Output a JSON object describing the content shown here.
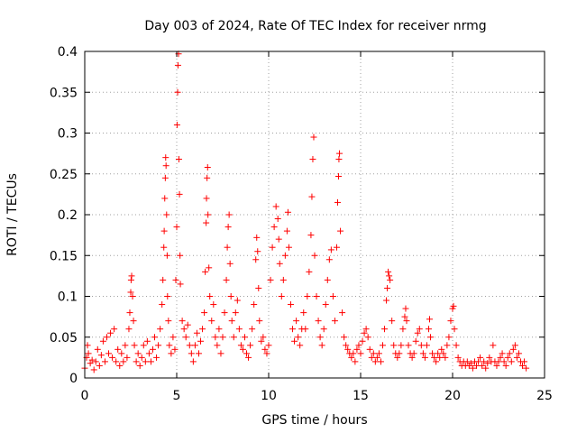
{
  "chart_data": {
    "type": "scatter",
    "title": "Day 003 of 2024, Rate Of TEC Index for receiver nrmg",
    "xlabel": "GPS time / hours",
    "ylabel": "ROTI / TECUs",
    "xlim": [
      0,
      25
    ],
    "ylim": [
      0,
      0.4
    ],
    "xticks": [
      0,
      5,
      10,
      15,
      20,
      25
    ],
    "xtick_labels": [
      "0",
      "5",
      "10",
      "15",
      "20",
      "25"
    ],
    "yticks": [
      0,
      0.05,
      0.1,
      0.15,
      0.2,
      0.25,
      0.3,
      0.35,
      0.4
    ],
    "ytick_labels": [
      "0",
      "0.05",
      "0.1",
      "0.15",
      "0.2",
      "0.25",
      "0.3",
      "0.35",
      "0.4"
    ],
    "grid": true,
    "marker": "+",
    "color": "#ff0000",
    "series": [
      {
        "name": "ROTI",
        "points": [
          [
            0.0,
            0.012
          ],
          [
            0.1,
            0.025
          ],
          [
            0.15,
            0.04
          ],
          [
            0.2,
            0.03
          ],
          [
            0.3,
            0.018
          ],
          [
            0.4,
            0.022
          ],
          [
            0.5,
            0.01
          ],
          [
            0.6,
            0.02
          ],
          [
            0.7,
            0.035
          ],
          [
            0.8,
            0.015
          ],
          [
            0.9,
            0.028
          ],
          [
            1.0,
            0.045
          ],
          [
            1.1,
            0.02
          ],
          [
            1.2,
            0.05
          ],
          [
            1.3,
            0.03
          ],
          [
            1.4,
            0.055
          ],
          [
            1.5,
            0.025
          ],
          [
            1.6,
            0.06
          ],
          [
            1.7,
            0.02
          ],
          [
            1.8,
            0.035
          ],
          [
            1.9,
            0.015
          ],
          [
            2.0,
            0.03
          ],
          [
            2.1,
            0.02
          ],
          [
            2.2,
            0.04
          ],
          [
            2.3,
            0.025
          ],
          [
            2.4,
            0.06
          ],
          [
            2.45,
            0.08
          ],
          [
            2.5,
            0.105
          ],
          [
            2.52,
            0.12
          ],
          [
            2.55,
            0.125
          ],
          [
            2.6,
            0.1
          ],
          [
            2.65,
            0.07
          ],
          [
            2.7,
            0.04
          ],
          [
            2.8,
            0.02
          ],
          [
            2.9,
            0.03
          ],
          [
            3.0,
            0.015
          ],
          [
            3.1,
            0.025
          ],
          [
            3.2,
            0.04
          ],
          [
            3.3,
            0.02
          ],
          [
            3.4,
            0.045
          ],
          [
            3.5,
            0.03
          ],
          [
            3.6,
            0.02
          ],
          [
            3.7,
            0.035
          ],
          [
            3.8,
            0.05
          ],
          [
            3.9,
            0.025
          ],
          [
            4.0,
            0.04
          ],
          [
            4.1,
            0.06
          ],
          [
            4.2,
            0.09
          ],
          [
            4.25,
            0.12
          ],
          [
            4.3,
            0.16
          ],
          [
            4.32,
            0.18
          ],
          [
            4.35,
            0.22
          ],
          [
            4.38,
            0.245
          ],
          [
            4.4,
            0.27
          ],
          [
            4.42,
            0.26
          ],
          [
            4.45,
            0.2
          ],
          [
            4.48,
            0.15
          ],
          [
            4.5,
            0.1
          ],
          [
            4.55,
            0.07
          ],
          [
            4.6,
            0.04
          ],
          [
            4.7,
            0.03
          ],
          [
            4.8,
            0.05
          ],
          [
            4.9,
            0.035
          ],
          [
            4.95,
            0.12
          ],
          [
            5.0,
            0.185
          ],
          [
            5.02,
            0.31
          ],
          [
            5.05,
            0.35
          ],
          [
            5.07,
            0.383
          ],
          [
            5.1,
            0.397
          ],
          [
            5.12,
            0.268
          ],
          [
            5.15,
            0.225
          ],
          [
            5.18,
            0.15
          ],
          [
            5.2,
            0.115
          ],
          [
            5.3,
            0.07
          ],
          [
            5.4,
            0.06
          ],
          [
            5.5,
            0.05
          ],
          [
            5.6,
            0.065
          ],
          [
            5.7,
            0.04
          ],
          [
            5.8,
            0.03
          ],
          [
            5.9,
            0.02
          ],
          [
            6.0,
            0.04
          ],
          [
            6.1,
            0.055
          ],
          [
            6.2,
            0.03
          ],
          [
            6.3,
            0.045
          ],
          [
            6.4,
            0.06
          ],
          [
            6.5,
            0.08
          ],
          [
            6.55,
            0.13
          ],
          [
            6.6,
            0.19
          ],
          [
            6.62,
            0.22
          ],
          [
            6.65,
            0.245
          ],
          [
            6.68,
            0.258
          ],
          [
            6.7,
            0.2
          ],
          [
            6.75,
            0.135
          ],
          [
            6.8,
            0.1
          ],
          [
            6.9,
            0.07
          ],
          [
            7.0,
            0.09
          ],
          [
            7.1,
            0.05
          ],
          [
            7.2,
            0.04
          ],
          [
            7.3,
            0.06
          ],
          [
            7.4,
            0.03
          ],
          [
            7.5,
            0.05
          ],
          [
            7.6,
            0.08
          ],
          [
            7.7,
            0.12
          ],
          [
            7.75,
            0.16
          ],
          [
            7.8,
            0.185
          ],
          [
            7.85,
            0.2
          ],
          [
            7.9,
            0.14
          ],
          [
            7.95,
            0.1
          ],
          [
            8.0,
            0.07
          ],
          [
            8.1,
            0.05
          ],
          [
            8.2,
            0.08
          ],
          [
            8.3,
            0.095
          ],
          [
            8.4,
            0.06
          ],
          [
            8.5,
            0.04
          ],
          [
            8.6,
            0.035
          ],
          [
            8.7,
            0.05
          ],
          [
            8.8,
            0.03
          ],
          [
            8.9,
            0.025
          ],
          [
            9.0,
            0.04
          ],
          [
            9.1,
            0.06
          ],
          [
            9.2,
            0.09
          ],
          [
            9.3,
            0.145
          ],
          [
            9.35,
            0.172
          ],
          [
            9.4,
            0.155
          ],
          [
            9.45,
            0.11
          ],
          [
            9.5,
            0.07
          ],
          [
            9.6,
            0.045
          ],
          [
            9.7,
            0.05
          ],
          [
            9.8,
            0.035
          ],
          [
            9.9,
            0.03
          ],
          [
            10.0,
            0.04
          ],
          [
            10.1,
            0.12
          ],
          [
            10.2,
            0.16
          ],
          [
            10.3,
            0.185
          ],
          [
            10.4,
            0.21
          ],
          [
            10.5,
            0.195
          ],
          [
            10.55,
            0.17
          ],
          [
            10.6,
            0.14
          ],
          [
            10.7,
            0.1
          ],
          [
            10.8,
            0.12
          ],
          [
            10.9,
            0.15
          ],
          [
            11.0,
            0.18
          ],
          [
            11.05,
            0.203
          ],
          [
            11.1,
            0.16
          ],
          [
            11.2,
            0.09
          ],
          [
            11.3,
            0.06
          ],
          [
            11.4,
            0.045
          ],
          [
            11.5,
            0.07
          ],
          [
            11.6,
            0.05
          ],
          [
            11.7,
            0.04
          ],
          [
            11.8,
            0.06
          ],
          [
            11.9,
            0.08
          ],
          [
            12.0,
            0.06
          ],
          [
            12.1,
            0.1
          ],
          [
            12.2,
            0.13
          ],
          [
            12.3,
            0.175
          ],
          [
            12.35,
            0.222
          ],
          [
            12.4,
            0.268
          ],
          [
            12.45,
            0.295
          ],
          [
            12.5,
            0.15
          ],
          [
            12.6,
            0.1
          ],
          [
            12.7,
            0.07
          ],
          [
            12.8,
            0.05
          ],
          [
            12.9,
            0.04
          ],
          [
            13.0,
            0.06
          ],
          [
            13.1,
            0.09
          ],
          [
            13.2,
            0.12
          ],
          [
            13.3,
            0.145
          ],
          [
            13.4,
            0.157
          ],
          [
            13.5,
            0.1
          ],
          [
            13.6,
            0.07
          ],
          [
            13.7,
            0.16
          ],
          [
            13.75,
            0.215
          ],
          [
            13.8,
            0.247
          ],
          [
            13.82,
            0.268
          ],
          [
            13.85,
            0.275
          ],
          [
            13.9,
            0.18
          ],
          [
            14.0,
            0.08
          ],
          [
            14.1,
            0.05
          ],
          [
            14.2,
            0.04
          ],
          [
            14.3,
            0.035
          ],
          [
            14.4,
            0.03
          ],
          [
            14.5,
            0.025
          ],
          [
            14.6,
            0.03
          ],
          [
            14.7,
            0.02
          ],
          [
            14.8,
            0.035
          ],
          [
            14.9,
            0.04
          ],
          [
            15.0,
            0.03
          ],
          [
            15.1,
            0.045
          ],
          [
            15.2,
            0.055
          ],
          [
            15.3,
            0.06
          ],
          [
            15.4,
            0.05
          ],
          [
            15.5,
            0.035
          ],
          [
            15.6,
            0.025
          ],
          [
            15.7,
            0.03
          ],
          [
            15.8,
            0.02
          ],
          [
            15.9,
            0.025
          ],
          [
            16.0,
            0.03
          ],
          [
            16.1,
            0.02
          ],
          [
            16.2,
            0.04
          ],
          [
            16.3,
            0.06
          ],
          [
            16.4,
            0.095
          ],
          [
            16.45,
            0.11
          ],
          [
            16.5,
            0.13
          ],
          [
            16.55,
            0.125
          ],
          [
            16.6,
            0.12
          ],
          [
            16.7,
            0.07
          ],
          [
            16.8,
            0.04
          ],
          [
            16.9,
            0.03
          ],
          [
            17.0,
            0.025
          ],
          [
            17.1,
            0.03
          ],
          [
            17.2,
            0.04
          ],
          [
            17.3,
            0.06
          ],
          [
            17.4,
            0.075
          ],
          [
            17.45,
            0.085
          ],
          [
            17.5,
            0.07
          ],
          [
            17.6,
            0.04
          ],
          [
            17.7,
            0.03
          ],
          [
            17.8,
            0.025
          ],
          [
            17.9,
            0.03
          ],
          [
            18.0,
            0.045
          ],
          [
            18.1,
            0.055
          ],
          [
            18.2,
            0.06
          ],
          [
            18.3,
            0.04
          ],
          [
            18.4,
            0.03
          ],
          [
            18.5,
            0.025
          ],
          [
            18.6,
            0.04
          ],
          [
            18.7,
            0.06
          ],
          [
            18.75,
            0.072
          ],
          [
            18.8,
            0.05
          ],
          [
            18.9,
            0.03
          ],
          [
            19.0,
            0.025
          ],
          [
            19.1,
            0.02
          ],
          [
            19.2,
            0.03
          ],
          [
            19.3,
            0.025
          ],
          [
            19.4,
            0.035
          ],
          [
            19.5,
            0.03
          ],
          [
            19.6,
            0.025
          ],
          [
            19.7,
            0.04
          ],
          [
            19.8,
            0.05
          ],
          [
            19.9,
            0.07
          ],
          [
            20.0,
            0.085
          ],
          [
            20.05,
            0.088
          ],
          [
            20.1,
            0.06
          ],
          [
            20.2,
            0.04
          ],
          [
            20.3,
            0.025
          ],
          [
            20.4,
            0.02
          ],
          [
            20.5,
            0.015
          ],
          [
            20.6,
            0.02
          ],
          [
            20.7,
            0.015
          ],
          [
            20.8,
            0.02
          ],
          [
            20.9,
            0.015
          ],
          [
            21.0,
            0.018
          ],
          [
            21.1,
            0.012
          ],
          [
            21.2,
            0.02
          ],
          [
            21.3,
            0.015
          ],
          [
            21.4,
            0.02
          ],
          [
            21.5,
            0.025
          ],
          [
            21.6,
            0.015
          ],
          [
            21.7,
            0.02
          ],
          [
            21.8,
            0.012
          ],
          [
            21.9,
            0.018
          ],
          [
            22.0,
            0.025
          ],
          [
            22.1,
            0.02
          ],
          [
            22.2,
            0.04
          ],
          [
            22.3,
            0.02
          ],
          [
            22.4,
            0.015
          ],
          [
            22.5,
            0.02
          ],
          [
            22.6,
            0.025
          ],
          [
            22.7,
            0.03
          ],
          [
            22.8,
            0.02
          ],
          [
            22.9,
            0.015
          ],
          [
            23.0,
            0.025
          ],
          [
            23.1,
            0.03
          ],
          [
            23.2,
            0.02
          ],
          [
            23.3,
            0.035
          ],
          [
            23.4,
            0.04
          ],
          [
            23.5,
            0.025
          ],
          [
            23.6,
            0.03
          ],
          [
            23.7,
            0.02
          ],
          [
            23.8,
            0.015
          ],
          [
            23.9,
            0.02
          ],
          [
            24.0,
            0.012
          ]
        ]
      }
    ]
  }
}
